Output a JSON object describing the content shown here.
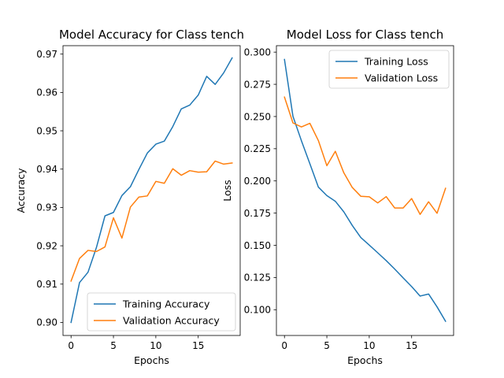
{
  "chart_data": [
    {
      "type": "line",
      "title": "Model Accuracy for Class tench",
      "xlabel": "Epochs",
      "ylabel": "Accuracy",
      "xlim": [
        -0.95,
        19.95
      ],
      "ylim": [
        0.8966,
        0.9722
      ],
      "xticks": [
        0,
        5,
        10,
        15
      ],
      "yticks": [
        0.9,
        0.91,
        0.92,
        0.93,
        0.94,
        0.95,
        0.96,
        0.97
      ],
      "ytick_labels": [
        "0.90",
        "0.91",
        "0.92",
        "0.93",
        "0.94",
        "0.95",
        "0.96",
        "0.97"
      ],
      "legend_loc": "lower right",
      "grid": false,
      "x": [
        0,
        1,
        2,
        3,
        4,
        5,
        6,
        7,
        8,
        9,
        10,
        11,
        12,
        13,
        14,
        15,
        16,
        17,
        18,
        19
      ],
      "series": [
        {
          "name": "Training Accuracy",
          "color": "#1f77b4",
          "values": [
            0.9,
            0.9104,
            0.9131,
            0.9196,
            0.9278,
            0.9287,
            0.9331,
            0.9354,
            0.9399,
            0.9442,
            0.9465,
            0.9473,
            0.9511,
            0.9557,
            0.9567,
            0.9593,
            0.9642,
            0.9621,
            0.9651,
            0.969
          ]
        },
        {
          "name": "Validation Accuracy",
          "color": "#ff7f0e",
          "values": [
            0.9108,
            0.9167,
            0.9188,
            0.9185,
            0.9197,
            0.9273,
            0.922,
            0.9301,
            0.9327,
            0.933,
            0.9368,
            0.9363,
            0.9401,
            0.9384,
            0.9396,
            0.9392,
            0.9393,
            0.9421,
            0.9413,
            0.9416
          ]
        }
      ]
    },
    {
      "type": "line",
      "title": "Model Loss for Class tench",
      "xlabel": "Epochs",
      "ylabel": "Loss",
      "xlim": [
        -0.95,
        19.95
      ],
      "ylim": [
        0.08,
        0.305
      ],
      "xticks": [
        0,
        5,
        10,
        15
      ],
      "yticks": [
        0.1,
        0.125,
        0.15,
        0.175,
        0.2,
        0.225,
        0.25,
        0.275,
        0.3
      ],
      "ytick_labels": [
        "0.100",
        "0.125",
        "0.150",
        "0.175",
        "0.200",
        "0.225",
        "0.250",
        "0.275",
        "0.300"
      ],
      "legend_loc": "upper right",
      "grid": false,
      "x": [
        0,
        1,
        2,
        3,
        4,
        5,
        6,
        7,
        8,
        9,
        10,
        11,
        12,
        13,
        14,
        15,
        16,
        17,
        18,
        19
      ],
      "series": [
        {
          "name": "Training Loss",
          "color": "#1f77b4",
          "values": [
            0.2943,
            0.2502,
            0.2312,
            0.2133,
            0.1952,
            0.1886,
            0.1842,
            0.176,
            0.1654,
            0.1561,
            0.1502,
            0.1442,
            0.1381,
            0.1316,
            0.1247,
            0.118,
            0.1106,
            0.1122,
            0.1022,
            0.091
          ]
        },
        {
          "name": "Validation Loss",
          "color": "#ff7f0e",
          "values": [
            0.2651,
            0.245,
            0.2419,
            0.2447,
            0.2313,
            0.2118,
            0.223,
            0.2063,
            0.1949,
            0.1881,
            0.1877,
            0.1829,
            0.1878,
            0.179,
            0.179,
            0.1863,
            0.174,
            0.1838,
            0.1749,
            0.1943
          ]
        }
      ]
    }
  ]
}
